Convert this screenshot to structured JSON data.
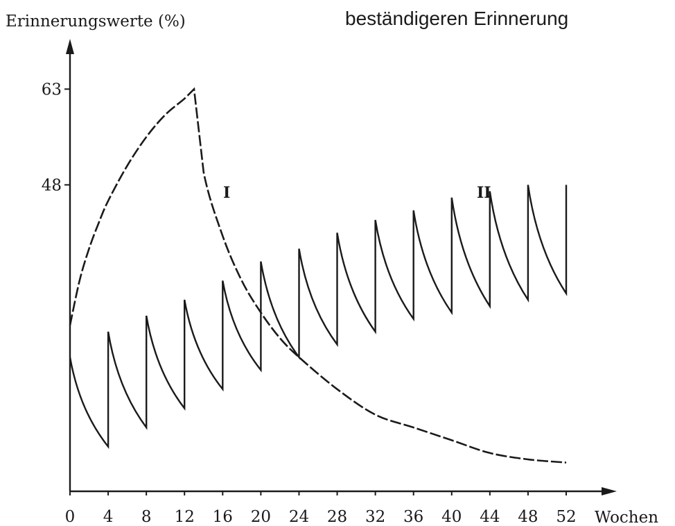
{
  "header": {
    "partial_text": "beständigeren Erinnerung"
  },
  "chart_data": {
    "type": "line",
    "title": "",
    "ylabel": "Erinnerungswerte (%)",
    "xlabel": "Wochen",
    "x_ticks": [
      0,
      4,
      8,
      12,
      16,
      20,
      24,
      28,
      32,
      36,
      40,
      44,
      48,
      52
    ],
    "y_ticks": [
      48,
      63
    ],
    "xlim": [
      0,
      52
    ],
    "ylim": [
      0,
      63
    ],
    "grid": false,
    "series": [
      {
        "name": "I",
        "style": "dashed",
        "x": [
          0,
          1,
          2,
          3,
          4,
          6,
          8,
          10,
          12,
          13,
          14,
          16,
          18,
          20,
          22,
          24,
          28,
          32,
          36,
          40,
          44,
          48,
          52
        ],
        "y": [
          26,
          33,
          38,
          42,
          45.5,
          51,
          55.5,
          59,
          61.5,
          63,
          50,
          40,
          33,
          28,
          24,
          21,
          16,
          12,
          10,
          8,
          6,
          5,
          4.5
        ]
      },
      {
        "name": "II",
        "style": "solid",
        "x": [
          0,
          4,
          4,
          8,
          8,
          12,
          12,
          16,
          16,
          20,
          20,
          24,
          24,
          28,
          28,
          32,
          32,
          36,
          36,
          40,
          40,
          44,
          44,
          48,
          48,
          52,
          52
        ],
        "y": [
          21,
          7,
          25,
          10,
          27.5,
          13,
          30,
          16,
          33,
          19,
          36,
          21,
          38,
          23,
          40.5,
          25,
          42.5,
          27,
          44,
          28,
          46,
          29,
          47,
          30,
          48,
          31,
          48
        ]
      }
    ]
  }
}
